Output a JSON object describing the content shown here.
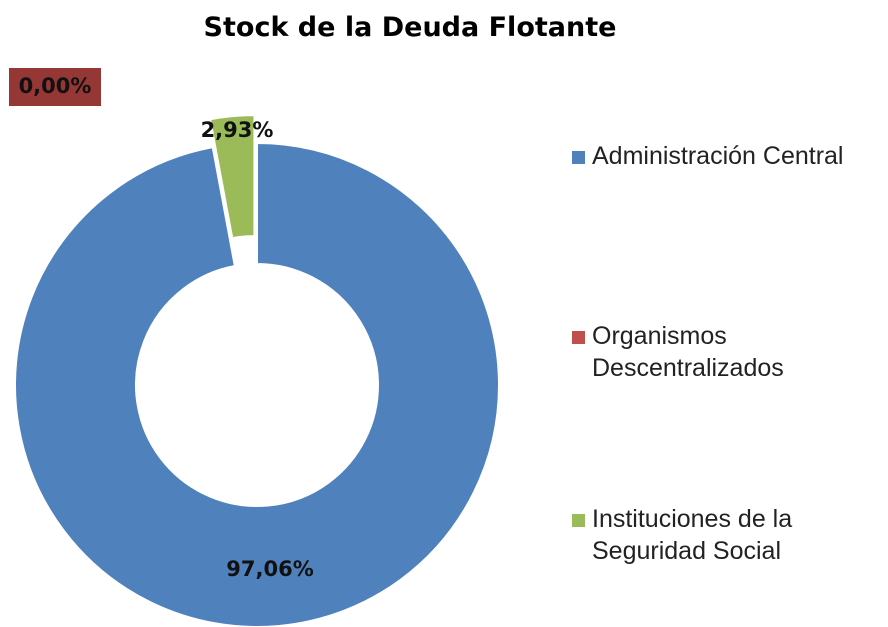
{
  "chart_data": {
    "type": "doughnut",
    "title": "Stock de la Deuda Flotante",
    "categories": [
      "Administración Central",
      "Organismos Descentralizados",
      "Instituciones de la Seguridad Social"
    ],
    "values": [
      97.06,
      0.0,
      2.93
    ],
    "value_labels": [
      "97,06%",
      "0,00%",
      "2,93%"
    ],
    "colors": [
      "#4f81bd",
      "#c0504d",
      "#9bbb59"
    ],
    "legend": "right"
  }
}
